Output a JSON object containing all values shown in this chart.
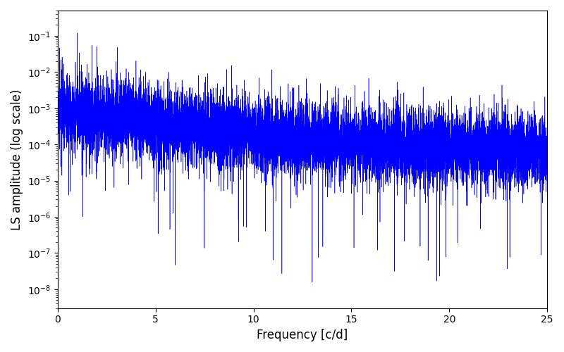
{
  "xlabel": "Frequency [c/d]",
  "ylabel": "LS amplitude (log scale)",
  "xlim": [
    0,
    25
  ],
  "ylim": [
    3e-09,
    0.5
  ],
  "line_color": "#0000ff",
  "line_width": 0.4,
  "yscale": "log",
  "figsize": [
    8.0,
    5.0
  ],
  "dpi": 100,
  "background_color": "#ffffff",
  "yticks": [
    1e-08,
    1e-07,
    1e-06,
    1e-05,
    0.0001,
    0.001,
    0.01,
    0.1
  ],
  "n_points": 10000,
  "seed": 17
}
